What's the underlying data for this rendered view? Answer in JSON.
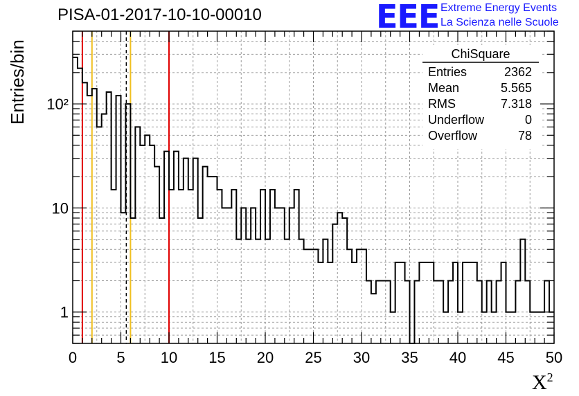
{
  "header": {
    "title": "PISA-01-2017-10-10-00010",
    "logo_text": "EEE",
    "logo_line1": "Extreme Energy Events",
    "logo_line2": "La Scienza nelle Scuole"
  },
  "axes": {
    "ylabel": "Entries/bin",
    "xlabel_base": "X",
    "xlabel_sup": "2"
  },
  "stats": {
    "title": "ChiSquare",
    "rows": [
      {
        "label": "Entries",
        "value": "2362"
      },
      {
        "label": "Mean",
        "value": "5.565"
      },
      {
        "label": "RMS",
        "value": "7.318"
      },
      {
        "label": "Underflow",
        "value": "0"
      },
      {
        "label": "Overflow",
        "value": "78"
      }
    ]
  },
  "colors": {
    "red_line": "#e00000",
    "yellow_line": "#f0c020",
    "histogram": "#000000",
    "logo": "#1a1aff"
  },
  "chart_data": {
    "type": "bar",
    "subtype": "histogram",
    "title": "PISA-01-2017-10-10-00010",
    "xlabel": "X²",
    "ylabel": "Entries/bin",
    "xlim": [
      0,
      50
    ],
    "ylim": [
      0.5,
      500
    ],
    "yscale": "log",
    "grid": true,
    "bin_width": 0.5,
    "bin_start": 0,
    "xticks": [
      0,
      5,
      10,
      15,
      20,
      25,
      30,
      35,
      40,
      45,
      50
    ],
    "yticks": [
      {
        "value": 1,
        "label": "1"
      },
      {
        "value": 10,
        "label": "10"
      },
      {
        "value": 100,
        "label": "10²"
      }
    ],
    "values": [
      280,
      220,
      160,
      120,
      140,
      60,
      80,
      130,
      15,
      120,
      9,
      100,
      8,
      60,
      40,
      50,
      40,
      25,
      8,
      35,
      15,
      35,
      15,
      30,
      15,
      30,
      8,
      25,
      20,
      20,
      15,
      10,
      10,
      15,
      5,
      10,
      5,
      10,
      5,
      15,
      5,
      15,
      10,
      10,
      5,
      10,
      15,
      5,
      4,
      4,
      4,
      3,
      5,
      3,
      7,
      9,
      8,
      4,
      3,
      4,
      4,
      2,
      1.5,
      2,
      2,
      2,
      1,
      3,
      3,
      2,
      0,
      2,
      3,
      3,
      3,
      2,
      2,
      1,
      2,
      3,
      1,
      3,
      3,
      3,
      2,
      1,
      2,
      1,
      2,
      3,
      1,
      1,
      2,
      5,
      2,
      1,
      1,
      1,
      2,
      1
    ],
    "vertical_lines": [
      {
        "x": 1,
        "color": "red",
        "style": "solid"
      },
      {
        "x": 2,
        "color": "yellow",
        "style": "solid"
      },
      {
        "x": 5.565,
        "color": "black",
        "style": "dashed"
      },
      {
        "x": 6,
        "color": "yellow",
        "style": "solid"
      },
      {
        "x": 10,
        "color": "red",
        "style": "solid"
      }
    ]
  }
}
